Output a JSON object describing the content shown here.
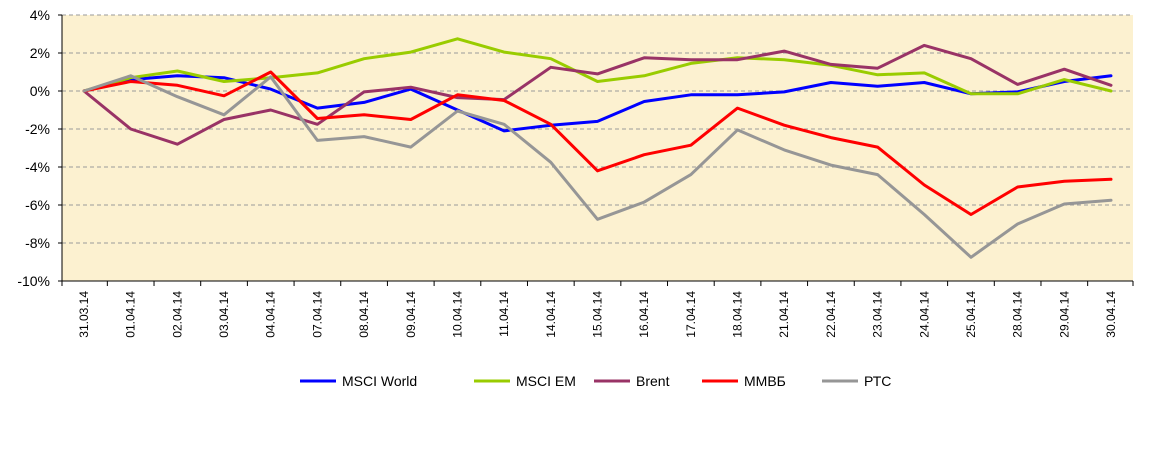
{
  "chart_data": {
    "type": "line",
    "title": "",
    "xlabel": "",
    "ylabel": "",
    "ylim": [
      -10,
      4
    ],
    "y_ticks": [
      "4%",
      "2%",
      "0%",
      "-2%",
      "-4%",
      "-6%",
      "-8%",
      "-10%"
    ],
    "y_tick_values": [
      4,
      2,
      0,
      -2,
      -4,
      -6,
      -8,
      -10
    ],
    "grid": "horizontal dashed",
    "legend_position": "bottom",
    "categories": [
      "31.03.14",
      "01.04.14",
      "02.04.14",
      "03.04.14",
      "04.04.14",
      "07.04.14",
      "08.04.14",
      "09.04.14",
      "10.04.14",
      "11.04.14",
      "14.04.14",
      "15.04.14",
      "16.04.14",
      "17.04.14",
      "18.04.14",
      "21.04.14",
      "22.04.14",
      "23.04.14",
      "24.04.14",
      "25.04.14",
      "28.04.14",
      "29.04.14",
      "30.04.14"
    ],
    "series": [
      {
        "name": "MSCI World",
        "color": "#0000ff",
        "values": [
          0,
          0.6,
          0.8,
          0.7,
          0.1,
          -0.9,
          -0.6,
          0.1,
          -1.0,
          -2.1,
          -1.8,
          -1.6,
          -0.55,
          -0.2,
          -0.2,
          -0.05,
          0.45,
          0.25,
          0.45,
          -0.15,
          -0.05,
          0.5,
          0.8
        ]
      },
      {
        "name": "MSCI EM",
        "color": "#99cc00",
        "values": [
          0,
          0.7,
          1.05,
          0.5,
          0.7,
          0.95,
          1.7,
          2.05,
          2.75,
          2.05,
          1.7,
          0.5,
          0.8,
          1.45,
          1.75,
          1.65,
          1.35,
          0.85,
          0.95,
          -0.15,
          -0.15,
          0.6,
          0.0
        ]
      },
      {
        "name": "Brent",
        "color": "#993366",
        "values": [
          0,
          -2.0,
          -2.8,
          -1.5,
          -1.0,
          -1.75,
          -0.05,
          0.2,
          -0.35,
          -0.45,
          1.25,
          0.9,
          1.75,
          1.65,
          1.65,
          2.1,
          1.4,
          1.2,
          2.4,
          1.7,
          0.35,
          1.15,
          0.3
        ]
      },
      {
        "name": "ММВБ",
        "color": "#ff0000",
        "values": [
          0,
          0.5,
          0.3,
          -0.25,
          1.0,
          -1.45,
          -1.25,
          -1.5,
          -0.2,
          -0.5,
          -1.75,
          -4.2,
          -3.35,
          -2.85,
          -0.9,
          -1.8,
          -2.45,
          -2.95,
          -4.95,
          -6.5,
          -5.05,
          -4.75,
          -4.65
        ]
      },
      {
        "name": "РТС",
        "color": "#969696",
        "values": [
          0,
          0.8,
          -0.3,
          -1.25,
          0.75,
          -2.6,
          -2.4,
          -2.95,
          -1.05,
          -1.75,
          -3.75,
          -6.75,
          -5.85,
          -4.4,
          -2.05,
          -3.1,
          -3.9,
          -4.4,
          -6.5,
          -8.75,
          -7.0,
          -5.95,
          -5.75
        ]
      }
    ]
  }
}
